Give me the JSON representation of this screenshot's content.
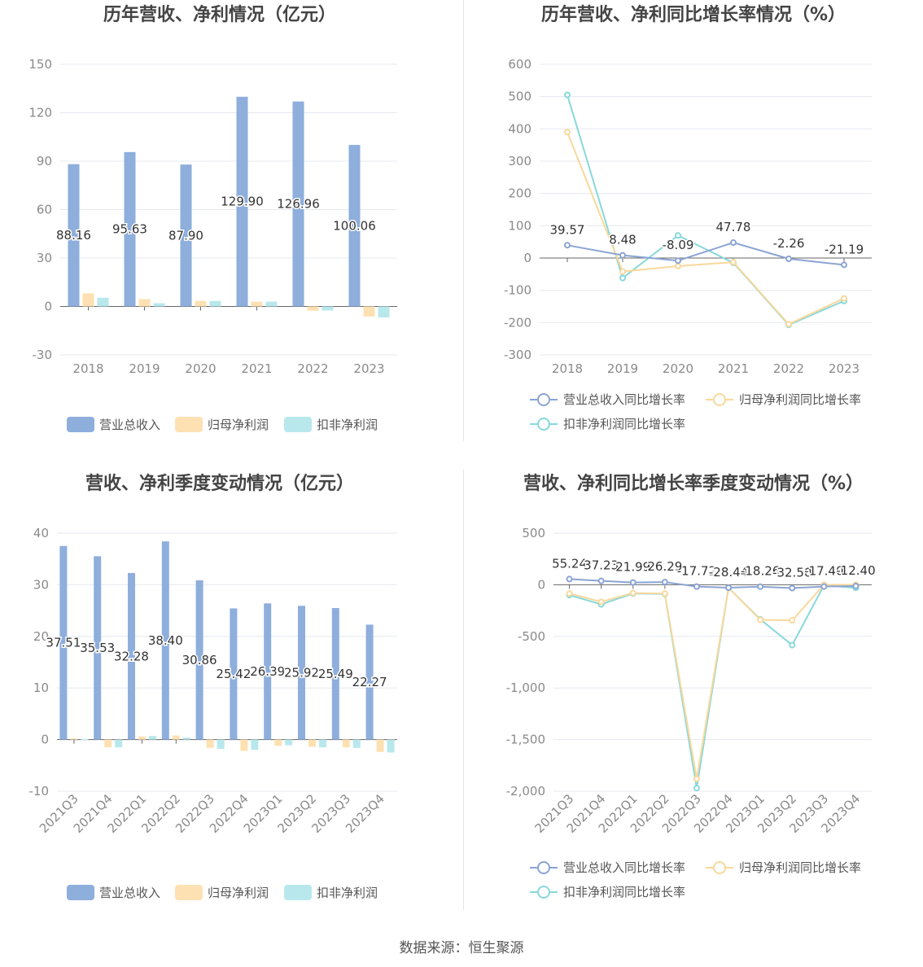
{
  "footer": "数据来源：恒生聚源",
  "colors": {
    "revenue": "#8eaedc",
    "net_profit": "#fde1b2",
    "deducted_profit": "#b8e8ec",
    "line_revenue": "#8ba4d4",
    "line_net": "#f9d89c",
    "line_deducted": "#88d8da"
  },
  "chart_data": [
    {
      "type": "bar",
      "title": "历年营收、净利情况（亿元）",
      "categories": [
        "2018",
        "2019",
        "2020",
        "2021",
        "2022",
        "2023"
      ],
      "ylim": [
        -30,
        150
      ],
      "yticks": [
        -30,
        0,
        30,
        60,
        90,
        120,
        150
      ],
      "legend": "bottom",
      "grid": true,
      "series": [
        {
          "name": "营业总收入",
          "values": [
            88.16,
            95.63,
            87.9,
            129.9,
            126.96,
            100.06
          ],
          "labels": [
            "88.16",
            "95.63",
            "87.90",
            "129.90",
            "126.96",
            "100.06"
          ]
        },
        {
          "name": "归母净利润",
          "values": [
            8.2,
            4.6,
            3.4,
            2.9,
            -2.6,
            -6.2
          ]
        },
        {
          "name": "扣非净利润",
          "values": [
            5.4,
            2.0,
            3.4,
            3.0,
            -2.5,
            -6.8
          ]
        }
      ]
    },
    {
      "type": "line",
      "title": "历年营收、净利同比增长率情况（%）",
      "categories": [
        "2018",
        "2019",
        "2020",
        "2021",
        "2022",
        "2023"
      ],
      "ylim": [
        -300,
        600
      ],
      "yticks": [
        -300,
        -200,
        -100,
        0,
        100,
        200,
        300,
        400,
        500,
        600
      ],
      "legend": "bottom",
      "grid": true,
      "series": [
        {
          "name": "营业总收入同比增长率",
          "values": [
            39.57,
            8.48,
            -8.09,
            47.78,
            -2.26,
            -21.19
          ],
          "labels": [
            "39.57",
            "8.48",
            "-8.09",
            "47.78",
            "-2.26",
            "-21.19"
          ]
        },
        {
          "name": "归母净利润同比增长率",
          "values": [
            390,
            -42,
            -25,
            -13,
            -205,
            -125
          ]
        },
        {
          "name": "扣非净利润同比增长率",
          "values": [
            505,
            -62,
            70,
            -15,
            -207,
            -133
          ]
        }
      ]
    },
    {
      "type": "bar",
      "title": "营收、净利季度变动情况（亿元）",
      "categories": [
        "2021Q3",
        "2021Q4",
        "2022Q1",
        "2022Q2",
        "2022Q3",
        "2022Q4",
        "2023Q1",
        "2023Q2",
        "2023Q3",
        "2023Q4"
      ],
      "ylim": [
        -10,
        40
      ],
      "yticks": [
        -10,
        0,
        10,
        20,
        30,
        40
      ],
      "legend": "bottom",
      "grid": true,
      "series": [
        {
          "name": "营业总收入",
          "values": [
            37.51,
            35.53,
            32.28,
            38.4,
            30.86,
            25.42,
            26.39,
            25.92,
            25.49,
            22.27
          ],
          "labels": [
            "37.51",
            "35.53",
            "32.28",
            "38.40",
            "30.86",
            "25.42",
            "26.39",
            "25.92",
            "25.49",
            "22.27"
          ]
        },
        {
          "name": "归母净利润",
          "values": [
            0.2,
            -1.5,
            0.6,
            0.8,
            -1.6,
            -2.2,
            -1.2,
            -1.4,
            -1.5,
            -2.4
          ]
        },
        {
          "name": "扣非净利润",
          "values": [
            0.1,
            -1.5,
            0.7,
            0.4,
            -1.8,
            -2.0,
            -1.1,
            -1.5,
            -1.6,
            -2.5
          ]
        }
      ]
    },
    {
      "type": "line",
      "title": "营收、净利同比增长率季度变动情况（%）",
      "categories": [
        "2021Q3",
        "2021Q4",
        "2022Q1",
        "2022Q2",
        "2022Q3",
        "2022Q4",
        "2023Q1",
        "2023Q2",
        "2023Q3",
        "2023Q4"
      ],
      "ylim": [
        -2000,
        500
      ],
      "yticks": [
        -2000,
        -1500,
        -1000,
        -500,
        0,
        500
      ],
      "ytick_labels": [
        "-2,000",
        "-1,500",
        "-1,000",
        "-500",
        "0",
        "500"
      ],
      "legend": "bottom",
      "grid": true,
      "series": [
        {
          "name": "营业总收入同比增长率",
          "values": [
            55.24,
            37.23,
            21.99,
            26.29,
            -17.72,
            -28.44,
            -18.26,
            -32.5,
            -17.4,
            -12.4
          ],
          "labels": [
            "55.24",
            "37.23",
            "21.99",
            "26.29",
            "-17.72",
            "-28.44",
            "-18.26",
            "-32.50",
            "-17.40",
            "-12.40"
          ]
        },
        {
          "name": "归母净利润同比增长率",
          "values": [
            -85,
            -165,
            -80,
            -85,
            -1880,
            -30,
            -340,
            -345,
            0,
            0
          ]
        },
        {
          "name": "扣非净利润同比增长率",
          "values": [
            -100,
            -190,
            -85,
            -90,
            -1970,
            -30,
            -335,
            -585,
            -5,
            -30
          ]
        }
      ]
    }
  ]
}
